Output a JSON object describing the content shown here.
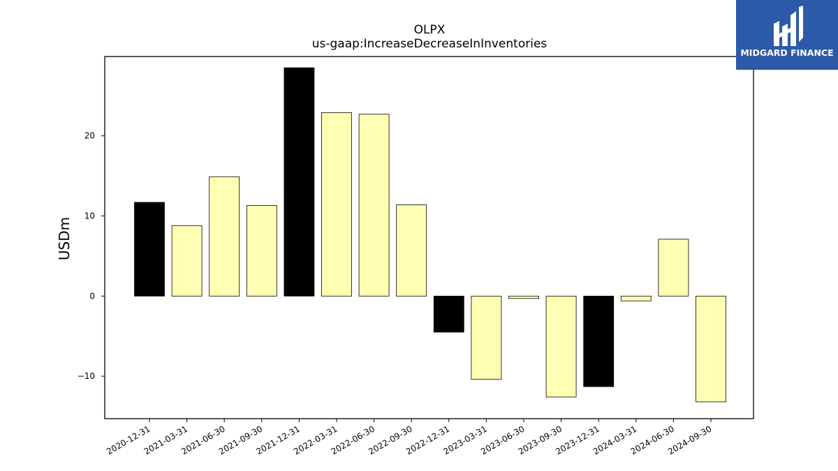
{
  "chart_data": {
    "type": "bar",
    "title": "OLPX",
    "subtitle": "us-gaap:IncreaseDecreaseInInventories",
    "xlabel": "",
    "ylabel": "USDm",
    "categories": [
      "2020-12-31",
      "2021-03-31",
      "2021-06-30",
      "2021-09-30",
      "2021-12-31",
      "2022-03-31",
      "2022-06-30",
      "2022-09-30",
      "2022-12-31",
      "2023-03-31",
      "2023-06-30",
      "2023-09-30",
      "2023-12-31",
      "2024-03-31",
      "2024-06-30",
      "2024-09-30"
    ],
    "values": [
      11.7,
      8.8,
      14.9,
      11.3,
      28.5,
      22.9,
      22.7,
      11.4,
      -4.5,
      -10.4,
      -0.3,
      -12.6,
      -11.3,
      -0.6,
      7.1,
      -13.2
    ],
    "bar_colors": [
      "#000000",
      "#ffffb3",
      "#ffffb3",
      "#ffffb3",
      "#000000",
      "#ffffb3",
      "#ffffb3",
      "#ffffb3",
      "#000000",
      "#ffffb3",
      "#ffffb3",
      "#ffffb3",
      "#000000",
      "#ffffb3",
      "#ffffb3",
      "#ffffb3"
    ],
    "yticks": [
      -10,
      0,
      10,
      20
    ],
    "ylim": [
      -15.3,
      29.9
    ],
    "grid": false,
    "legend": "none"
  },
  "logo": {
    "text": "MIDGARD FINANCE",
    "background": "#2c5aa8"
  }
}
